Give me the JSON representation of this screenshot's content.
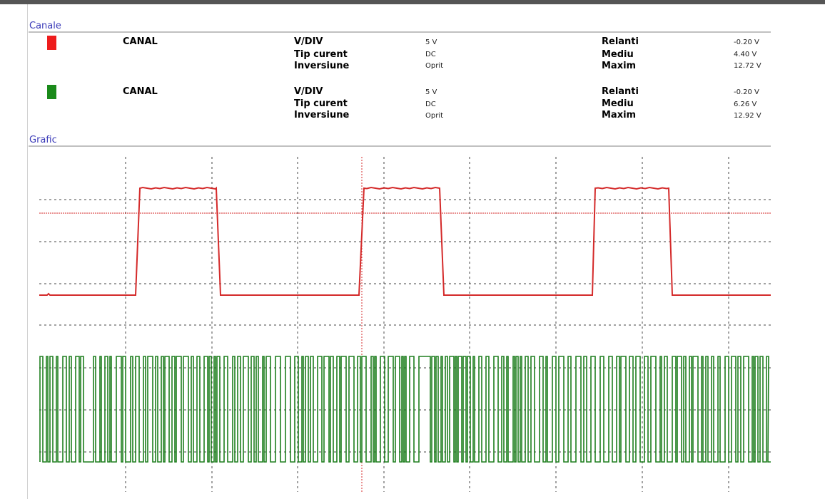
{
  "sections": {
    "channels_title": "Canale",
    "graph_title": "Grafic"
  },
  "channels": [
    {
      "color": "#ee1c1c",
      "name": "CANAL",
      "vdiv_label": "V/DIV",
      "vdiv_value": "5 V",
      "current_label": "Tip curent",
      "current_value": "DC",
      "inversion_label": "Inversiune",
      "inversion_value": "Oprit",
      "idle_label": "Relanti",
      "idle_value": "-0.20 V",
      "avg_label": "Mediu",
      "avg_value": "4.40 V",
      "max_label": "Maxim",
      "max_value": "12.72 V"
    },
    {
      "color": "#1a8a1a",
      "name": "CANAL",
      "vdiv_label": "V/DIV",
      "vdiv_value": "5 V",
      "current_label": "Tip curent",
      "current_value": "DC",
      "inversion_label": "Inversiune",
      "inversion_value": "Oprit",
      "idle_label": "Relanti",
      "idle_value": "-0.20 V",
      "avg_label": "Mediu",
      "avg_value": "6.26 V",
      "max_label": "Maxim",
      "max_value": "12.92 V"
    }
  ],
  "graph": {
    "trace_colors": {
      "channel_1": "#d42a2a",
      "channel_2": "#1e7e1e"
    },
    "cursor_color": "#d42a2a",
    "grid_color": "#444444"
  }
}
